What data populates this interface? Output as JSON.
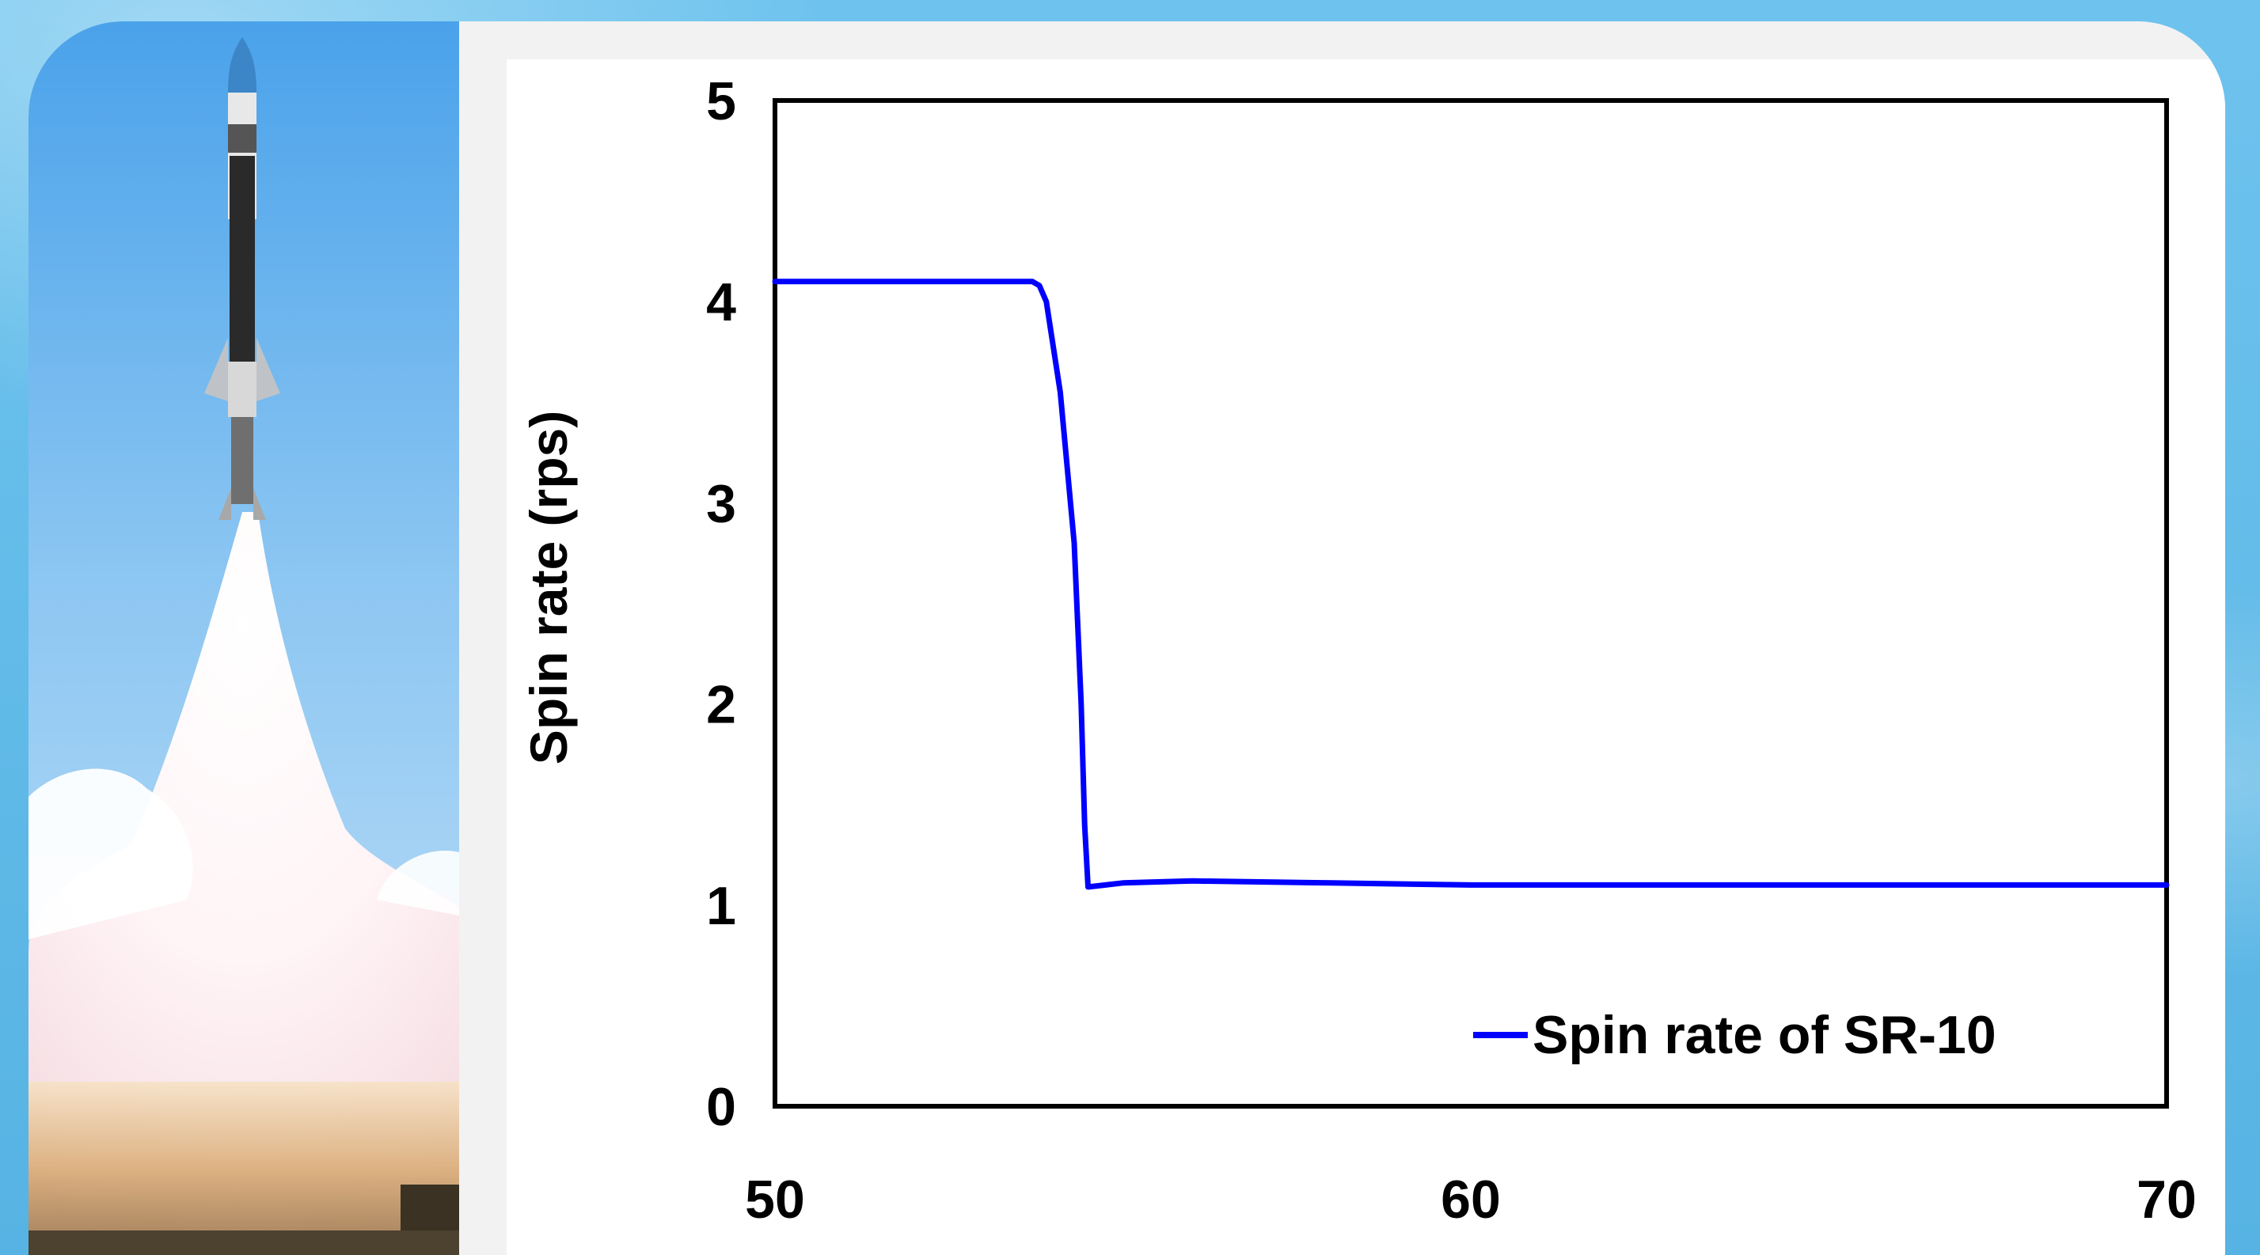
{
  "colors": {
    "background": "#5cb8e6",
    "panel": "#ffffff",
    "series": "#0000ff",
    "axis": "#000000"
  },
  "photo": {
    "subject": "rocket-launch-icon"
  },
  "chart_data": {
    "type": "line",
    "title": "",
    "xlabel": "",
    "ylabel": "Spin rate (rps)",
    "xlim": [
      50,
      70
    ],
    "ylim": [
      0,
      5
    ],
    "xticks": [
      "50",
      "60",
      "70"
    ],
    "yticks": [
      "0",
      "1",
      "2",
      "3",
      "4",
      "5"
    ],
    "grid": false,
    "legend": "bottom-right",
    "series": [
      {
        "name": "Spin rate of SR-10",
        "color": "#0000ff",
        "x": [
          50,
          53.7,
          53.8,
          53.9,
          54.1,
          54.3,
          54.4,
          54.45,
          54.5,
          55,
          56,
          58,
          60,
          62,
          65,
          68,
          70
        ],
        "y": [
          4.1,
          4.1,
          4.08,
          4.0,
          3.55,
          2.8,
          2.0,
          1.4,
          1.09,
          1.11,
          1.12,
          1.11,
          1.1,
          1.1,
          1.1,
          1.1,
          1.1
        ]
      }
    ]
  }
}
